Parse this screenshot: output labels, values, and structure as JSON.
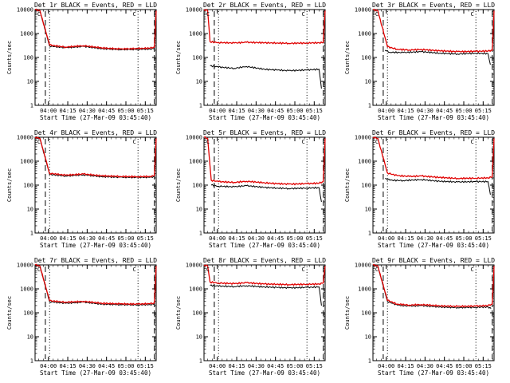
{
  "chart_data": [
    {
      "type": "line",
      "title": "Det 1r BLACK = Events, RED = LLD",
      "xlabel": "Start Time (27-Mar-09 03:45:40)",
      "ylabel": "Counts/sec",
      "x_ticks": [
        "04:00",
        "04:15",
        "04:30",
        "04:45",
        "05:00",
        "05:15"
      ],
      "y_ticks": [
        "1",
        "10",
        "100",
        "1000",
        "10000"
      ],
      "ylim": [
        1,
        10000
      ],
      "y_scale": "log",
      "marker_text": "C",
      "series": [
        {
          "color": "#000000",
          "x": [
            0.0,
            0.04,
            0.12,
            0.25,
            0.4,
            0.55,
            0.7,
            0.85,
            0.95,
            0.985,
            1.0
          ],
          "y": [
            10000,
            9000,
            300,
            255,
            290,
            235,
            215,
            220,
            225,
            240,
            9000
          ]
        },
        {
          "color": "#e00000",
          "x": [
            0.0,
            0.04,
            0.12,
            0.25,
            0.4,
            0.55,
            0.7,
            0.85,
            0.95,
            0.985,
            1.0
          ],
          "y": [
            10000,
            9000,
            330,
            270,
            310,
            250,
            225,
            235,
            245,
            270,
            9000
          ]
        }
      ]
    },
    {
      "type": "line",
      "title": "Det 2r BLACK = Events, RED = LLD",
      "xlabel": "Start Time (27-Mar-09 03:45:40)",
      "ylabel": "Counts/sec",
      "x_ticks": [
        "04:00",
        "04:15",
        "04:30",
        "04:45",
        "05:00",
        "05:15"
      ],
      "y_ticks": [
        "1",
        "10",
        "100",
        "1000",
        "10000"
      ],
      "ylim": [
        1,
        10000
      ],
      "y_scale": "log",
      "marker_text": "C",
      "series": [
        {
          "color": "#000000",
          "x": [
            0.05,
            0.12,
            0.25,
            0.35,
            0.5,
            0.6,
            0.7,
            0.85,
            0.95,
            0.97
          ],
          "y": [
            45,
            40,
            35,
            42,
            32,
            30,
            28,
            30,
            32,
            5
          ]
        },
        {
          "color": "#e00000",
          "x": [
            0.0,
            0.03,
            0.05,
            0.12,
            0.25,
            0.35,
            0.5,
            0.6,
            0.7,
            0.85,
            0.95,
            0.985,
            1.0
          ],
          "y": [
            10000,
            9000,
            450,
            420,
            400,
            430,
            410,
            400,
            390,
            400,
            410,
            420,
            9000
          ]
        }
      ]
    },
    {
      "type": "line",
      "title": "Det 3r BLACK = Events, RED = LLD",
      "xlabel": "Start Time (27-Mar-09 03:45:40)",
      "ylabel": "Counts/sec",
      "x_ticks": [
        "04:00",
        "04:15",
        "04:30",
        "04:45",
        "05:00",
        "05:15"
      ],
      "y_ticks": [
        "1",
        "10",
        "100",
        "1000",
        "10000"
      ],
      "ylim": [
        1,
        10000
      ],
      "y_scale": "log",
      "marker_text": "C",
      "series": [
        {
          "color": "#000000",
          "x": [
            0.1,
            0.14,
            0.25,
            0.4,
            0.55,
            0.7,
            0.85,
            0.95,
            0.97
          ],
          "y": [
            200,
            165,
            160,
            175,
            150,
            140,
            150,
            145,
            50
          ]
        },
        {
          "color": "#e00000",
          "x": [
            0.0,
            0.04,
            0.12,
            0.2,
            0.3,
            0.4,
            0.55,
            0.7,
            0.85,
            0.95,
            0.985,
            1.0
          ],
          "y": [
            10000,
            9000,
            280,
            220,
            205,
            215,
            190,
            175,
            180,
            185,
            200,
            9000
          ]
        }
      ]
    },
    {
      "type": "line",
      "title": "Det 4r BLACK = Events, RED = LLD",
      "xlabel": "Start Time (27-Mar-09 03:45:40)",
      "ylabel": "Counts/sec",
      "x_ticks": [
        "04:00",
        "04:15",
        "04:30",
        "04:45",
        "05:00",
        "05:15"
      ],
      "y_ticks": [
        "1",
        "10",
        "100",
        "1000",
        "10000"
      ],
      "ylim": [
        1,
        10000
      ],
      "y_scale": "log",
      "marker_text": "C",
      "series": [
        {
          "color": "#000000",
          "x": [
            0.0,
            0.04,
            0.12,
            0.25,
            0.4,
            0.55,
            0.7,
            0.85,
            0.95,
            0.985,
            1.0
          ],
          "y": [
            10000,
            9000,
            280,
            240,
            270,
            225,
            215,
            210,
            215,
            225,
            9000
          ]
        },
        {
          "color": "#e00000",
          "x": [
            0.0,
            0.04,
            0.12,
            0.25,
            0.4,
            0.55,
            0.7,
            0.85,
            0.95,
            0.985,
            1.0
          ],
          "y": [
            10000,
            9000,
            310,
            260,
            290,
            245,
            230,
            225,
            230,
            245,
            9000
          ]
        }
      ]
    },
    {
      "type": "line",
      "title": "Det 5r BLACK = Events, RED = LLD",
      "xlabel": "Start Time (27-Mar-09 03:45:40)",
      "ylabel": "Counts/sec",
      "x_ticks": [
        "04:00",
        "04:15",
        "04:30",
        "04:45",
        "05:00",
        "05:15"
      ],
      "y_ticks": [
        "1",
        "10",
        "100",
        "1000",
        "10000"
      ],
      "ylim": [
        1,
        10000
      ],
      "y_scale": "log",
      "marker_text": "C",
      "series": [
        {
          "color": "#000000",
          "x": [
            0.06,
            0.12,
            0.25,
            0.35,
            0.5,
            0.6,
            0.7,
            0.85,
            0.95,
            0.97
          ],
          "y": [
            100,
            90,
            85,
            95,
            80,
            75,
            72,
            75,
            78,
            20
          ]
        },
        {
          "color": "#e00000",
          "x": [
            0.0,
            0.03,
            0.06,
            0.12,
            0.25,
            0.35,
            0.5,
            0.6,
            0.7,
            0.85,
            0.95,
            0.985,
            1.0
          ],
          "y": [
            10000,
            9000,
            160,
            140,
            130,
            145,
            125,
            115,
            110,
            115,
            120,
            140,
            9000
          ]
        }
      ]
    },
    {
      "type": "line",
      "title": "Det 6r BLACK = Events, RED = LLD",
      "xlabel": "Start Time (27-Mar-09 03:45:40)",
      "ylabel": "Counts/sec",
      "x_ticks": [
        "04:00",
        "04:15",
        "04:30",
        "04:45",
        "05:00",
        "05:15"
      ],
      "y_ticks": [
        "1",
        "10",
        "100",
        "1000",
        "10000"
      ],
      "ylim": [
        1,
        10000
      ],
      "y_scale": "log",
      "marker_text": "C",
      "series": [
        {
          "color": "#000000",
          "x": [
            0.1,
            0.14,
            0.25,
            0.4,
            0.55,
            0.7,
            0.85,
            0.95,
            0.97
          ],
          "y": [
            190,
            160,
            155,
            170,
            145,
            135,
            140,
            140,
            40
          ]
        },
        {
          "color": "#e00000",
          "x": [
            0.0,
            0.04,
            0.12,
            0.2,
            0.3,
            0.4,
            0.55,
            0.7,
            0.85,
            0.95,
            0.985,
            1.0
          ],
          "y": [
            10000,
            9000,
            320,
            250,
            230,
            240,
            210,
            190,
            195,
            200,
            220,
            9000
          ]
        }
      ]
    },
    {
      "type": "line",
      "title": "Det 7r BLACK = Events, RED = LLD",
      "xlabel": "Start Time (27-Mar-09 03:45:40)",
      "ylabel": "Counts/sec",
      "x_ticks": [
        "04:00",
        "04:15",
        "04:30",
        "04:45",
        "05:00",
        "05:15"
      ],
      "y_ticks": [
        "1",
        "10",
        "100",
        "1000",
        "10000"
      ],
      "ylim": [
        1,
        10000
      ],
      "y_scale": "log",
      "marker_text": "C",
      "series": [
        {
          "color": "#000000",
          "x": [
            0.0,
            0.04,
            0.12,
            0.25,
            0.4,
            0.55,
            0.7,
            0.85,
            0.95,
            0.985,
            1.0
          ],
          "y": [
            10000,
            9000,
            290,
            250,
            280,
            230,
            220,
            215,
            220,
            230,
            9000
          ]
        },
        {
          "color": "#e00000",
          "x": [
            0.0,
            0.04,
            0.12,
            0.25,
            0.4,
            0.55,
            0.7,
            0.85,
            0.95,
            0.985,
            1.0
          ],
          "y": [
            10000,
            9000,
            320,
            275,
            300,
            250,
            235,
            230,
            240,
            255,
            9000
          ]
        }
      ]
    },
    {
      "type": "line",
      "title": "Det 8r BLACK = Events, RED = LLD",
      "xlabel": "Start Time (27-Mar-09 03:45:40)",
      "ylabel": "Counts/sec",
      "x_ticks": [
        "04:00",
        "04:15",
        "04:30",
        "04:45",
        "05:00",
        "05:15"
      ],
      "y_ticks": [
        "1",
        "10",
        "100",
        "1000",
        "10000"
      ],
      "ylim": [
        1,
        10000
      ],
      "y_scale": "log",
      "marker_text": "C",
      "series": [
        {
          "color": "#000000",
          "x": [
            0.05,
            0.12,
            0.25,
            0.35,
            0.5,
            0.6,
            0.7,
            0.85,
            0.95,
            0.97
          ],
          "y": [
            1400,
            1300,
            1250,
            1350,
            1200,
            1150,
            1100,
            1150,
            1200,
            200
          ]
        },
        {
          "color": "#e00000",
          "x": [
            0.0,
            0.03,
            0.05,
            0.12,
            0.25,
            0.35,
            0.5,
            0.6,
            0.7,
            0.85,
            0.95,
            0.985,
            1.0
          ],
          "y": [
            10000,
            9000,
            1900,
            1750,
            1650,
            1800,
            1600,
            1550,
            1500,
            1550,
            1600,
            1750,
            9000
          ]
        }
      ]
    },
    {
      "type": "line",
      "title": "Det 9r BLACK = Events, RED = LLD",
      "xlabel": "Start Time (27-Mar-09 03:45:40)",
      "ylabel": "Counts/sec",
      "x_ticks": [
        "04:00",
        "04:15",
        "04:30",
        "04:45",
        "05:00",
        "05:15"
      ],
      "y_ticks": [
        "1",
        "10",
        "100",
        "1000",
        "10000"
      ],
      "ylim": [
        1,
        10000
      ],
      "y_scale": "log",
      "marker_text": "C",
      "series": [
        {
          "color": "#000000",
          "x": [
            0.0,
            0.04,
            0.12,
            0.2,
            0.3,
            0.4,
            0.55,
            0.7,
            0.85,
            0.95,
            0.975
          ],
          "y": [
            10000,
            9000,
            300,
            210,
            190,
            200,
            175,
            165,
            170,
            175,
            150
          ]
        },
        {
          "color": "#e00000",
          "x": [
            0.0,
            0.04,
            0.12,
            0.2,
            0.3,
            0.4,
            0.55,
            0.7,
            0.85,
            0.95,
            0.985,
            1.0
          ],
          "y": [
            10000,
            9000,
            330,
            230,
            210,
            220,
            195,
            185,
            190,
            200,
            230,
            9000
          ]
        }
      ]
    }
  ]
}
